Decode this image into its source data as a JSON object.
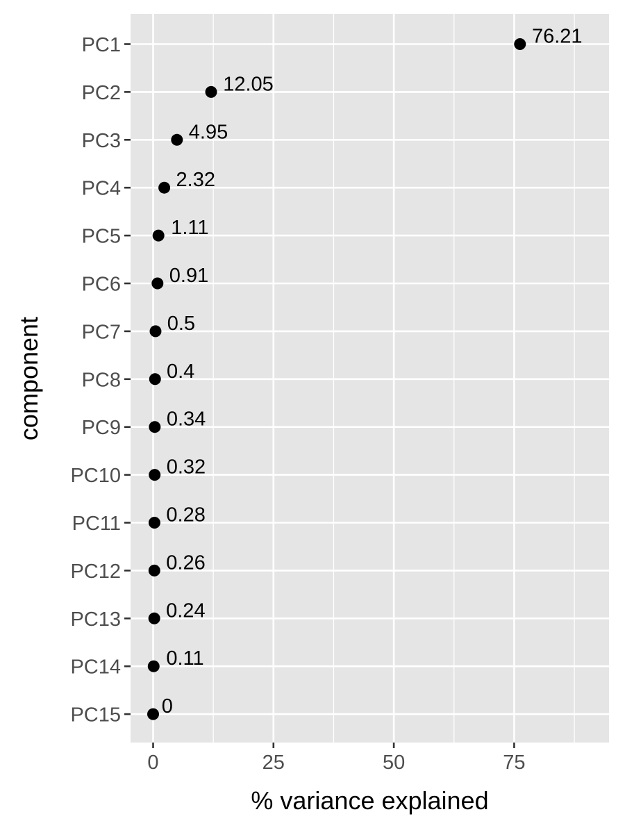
{
  "chart_data": {
    "type": "scatter",
    "title": "",
    "xlabel": "% variance explained",
    "ylabel": "component",
    "xlim": [
      -9,
      90
    ],
    "x_ticks": [
      0,
      25,
      50,
      75
    ],
    "x_tick_labels": [
      "0",
      "25",
      "50",
      "75"
    ],
    "x_minor_gridlines": [
      12.5,
      37.5,
      62.5,
      87.5
    ],
    "grid": true,
    "legend": "none",
    "categories": [
      "PC1",
      "PC2",
      "PC3",
      "PC4",
      "PC5",
      "PC6",
      "PC7",
      "PC8",
      "PC9",
      "PC10",
      "PC11",
      "PC12",
      "PC13",
      "PC14",
      "PC15"
    ],
    "values": [
      76.21,
      12.05,
      4.95,
      2.32,
      1.11,
      0.91,
      0.5,
      0.4,
      0.34,
      0.32,
      0.28,
      0.26,
      0.24,
      0.11,
      0
    ],
    "data_labels": [
      "76.21",
      "12.05",
      "4.95",
      "2.32",
      "1.11",
      "0.91",
      "0.5",
      "0.4",
      "0.34",
      "0.32",
      "0.28",
      "0.26",
      "0.24",
      "0.11",
      "0"
    ],
    "colors": {
      "panel_background": "#E5E5E5",
      "grid": "#FFFFFF",
      "point": "#000000",
      "tick_label": "#4D4D4D",
      "axis_title": "#000000"
    }
  }
}
